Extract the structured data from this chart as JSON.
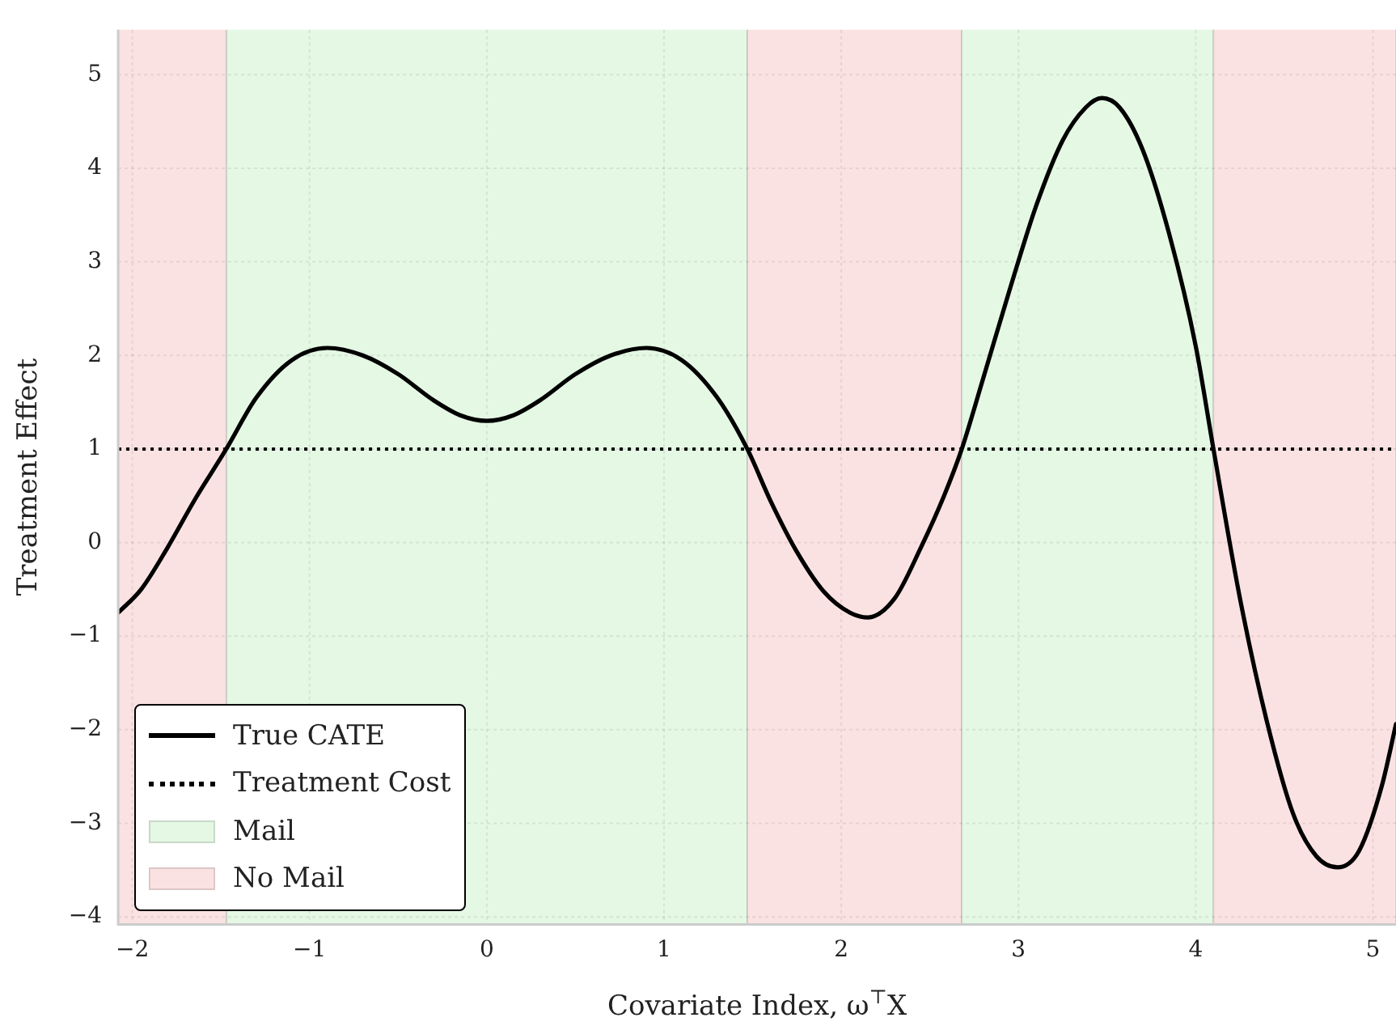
{
  "chart_data": {
    "type": "line",
    "xlabel": "Covariate Index, ω$^{⊤}$X",
    "ylabel": "Treatment Effect",
    "x": [
      -2.08,
      -1.95,
      -1.8,
      -1.65,
      -1.47,
      -1.3,
      -1.1,
      -0.9,
      -0.7,
      -0.5,
      -0.3,
      -0.15,
      0,
      0.15,
      0.3,
      0.5,
      0.7,
      0.9,
      1.1,
      1.3,
      1.47,
      1.6,
      1.75,
      1.9,
      2.05,
      2.15,
      2.3,
      2.45,
      2.58,
      2.68,
      2.8,
      2.95,
      3.1,
      3.25,
      3.38,
      3.47,
      3.57,
      3.7,
      3.85,
      4.0,
      4.1,
      4.25,
      4.4,
      4.55,
      4.68,
      4.8,
      4.92,
      5.05,
      5.13
    ],
    "series": [
      {
        "name": "True CATE",
        "color": "#000000",
        "values": [
          -0.75,
          -0.5,
          -0.05,
          0.45,
          1.0,
          1.55,
          1.95,
          2.08,
          2.0,
          1.8,
          1.52,
          1.36,
          1.3,
          1.36,
          1.52,
          1.8,
          2.0,
          2.08,
          1.95,
          1.55,
          1.0,
          0.45,
          -0.1,
          -0.52,
          -0.75,
          -0.8,
          -0.6,
          -0.05,
          0.5,
          1.0,
          1.75,
          2.7,
          3.6,
          4.3,
          4.65,
          4.75,
          4.65,
          4.2,
          3.3,
          2.1,
          1.0,
          -0.6,
          -1.9,
          -2.9,
          -3.35,
          -3.47,
          -3.3,
          -2.6,
          -1.94
        ]
      }
    ],
    "ref_lines": [
      {
        "axis": "y",
        "value": 1,
        "label": "Treatment Cost",
        "color": "#000000",
        "line_style": "dotted"
      }
    ],
    "bands": [
      {
        "axis": "x",
        "from": -1.47,
        "to": 1.47,
        "label": "Mail",
        "color": "#e4f8e4"
      },
      {
        "axis": "x",
        "from": -2.08,
        "to": -1.47,
        "label": "No Mail",
        "color": "#fbe2e2"
      },
      {
        "axis": "x",
        "from": 1.47,
        "to": 2.68,
        "color": "#fbe2e2"
      },
      {
        "axis": "x",
        "from": 2.68,
        "to": 4.1,
        "color": "#e4f8e4"
      },
      {
        "axis": "x",
        "from": 4.1,
        "to": 5.13,
        "color": "#fbe2e2"
      }
    ],
    "xlim": [
      -2.08,
      5.13
    ],
    "ylim": [
      -4.08,
      5.48
    ],
    "xticks": [
      -2,
      -1,
      0,
      1,
      2,
      3,
      4,
      5
    ],
    "yticks": [
      -4,
      -3,
      -2,
      -1,
      0,
      1,
      2,
      3,
      4,
      5
    ],
    "grid": true,
    "legend": "bottom left",
    "marker": "none",
    "line_style": "solid"
  }
}
